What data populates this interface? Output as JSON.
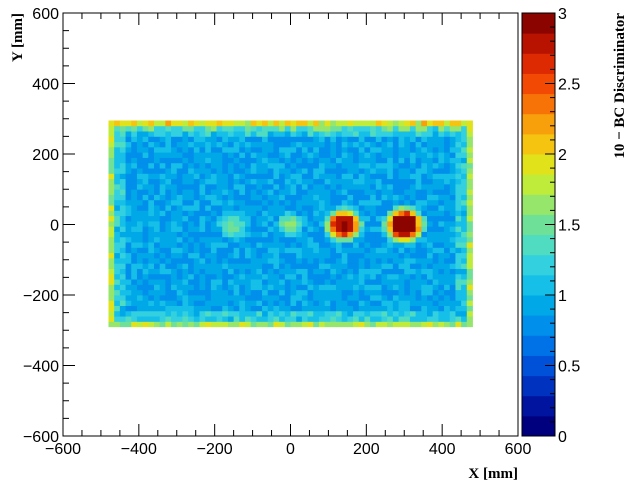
{
  "chart_data": {
    "type": "heatmap",
    "xlabel": "X [mm]",
    "ylabel": "Y [mm]",
    "zlabel": "10  −  BC Discriminator",
    "xlim": [
      -600,
      600
    ],
    "ylim": [
      -600,
      600
    ],
    "zlim": [
      0,
      3
    ],
    "x_ticks": [
      "−600",
      "−400",
      "−200",
      "0",
      "200",
      "400",
      "600"
    ],
    "y_ticks": [
      "−600",
      "−400",
      "−200",
      "0",
      "200",
      "400",
      "600"
    ],
    "z_ticks": [
      "0",
      "0.5",
      "1",
      "1.5",
      "2",
      "2.5",
      "3"
    ],
    "grid": false,
    "colorbar": "right",
    "colormap": [
      "#00007f",
      "#0014a0",
      "#0032c0",
      "#0050d8",
      "#0072e8",
      "#008fea",
      "#00a8e8",
      "#15bfe8",
      "#33d0e0",
      "#4fdcc0",
      "#6fe098",
      "#95e66a",
      "#bfec3a",
      "#e2e21a",
      "#f4c411",
      "#f89f0c",
      "#f77308",
      "#f24a05",
      "#dd2a02",
      "#b81300",
      "#8c0400"
    ],
    "scan_region": {
      "x": [
        -480,
        480
      ],
      "y": [
        -290,
        290
      ]
    },
    "background_level": 0.9,
    "edge_level": 2.0,
    "hotspots": [
      {
        "x": 140,
        "y": 0,
        "peak": 2.8,
        "radius": 55
      },
      {
        "x": 300,
        "y": 0,
        "peak": 3.0,
        "radius": 60
      },
      {
        "x": 0,
        "y": 0,
        "peak": 1.6,
        "radius": 40
      },
      {
        "x": -150,
        "y": 0,
        "peak": 1.4,
        "radius": 45
      }
    ]
  }
}
